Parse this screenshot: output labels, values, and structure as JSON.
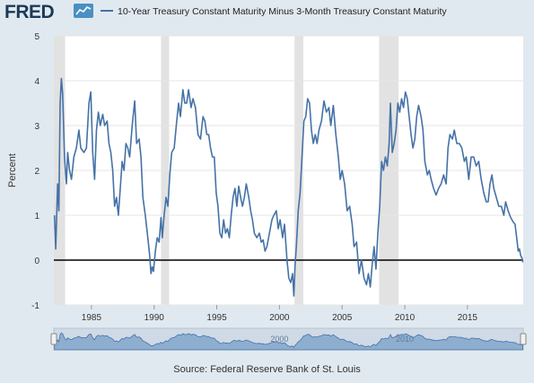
{
  "header": {
    "logo_text": "FRED",
    "logo_icon": "line-chart-icon",
    "legend_label": "10-Year Treasury Constant Maturity Minus 3-Month Treasury Constant Maturity",
    "series_color": "#4572a7"
  },
  "footer": {
    "source": "Source: Federal Reserve Bank of St. Louis"
  },
  "chart_data": {
    "type": "line",
    "title": "",
    "xlabel": "",
    "ylabel": "Percent",
    "xlim": [
      1982.0,
      2019.45
    ],
    "ylim": [
      -1,
      5
    ],
    "yticks": [
      -1,
      0,
      1,
      2,
      3,
      4,
      5
    ],
    "xticks": [
      1985,
      1990,
      1995,
      2000,
      2005,
      2010,
      2015
    ],
    "grid": true,
    "zero_line": true,
    "recessions": [
      [
        1982.0,
        1982.9
      ],
      [
        1990.55,
        1991.2
      ],
      [
        2001.2,
        2001.9
      ],
      [
        2007.95,
        2009.5
      ]
    ],
    "navigator_labels": [
      {
        "x": 2000,
        "label": "2000"
      },
      {
        "x": 2010,
        "label": "2010"
      }
    ],
    "series": [
      {
        "name": "10-Year Treasury Constant Maturity Minus 3-Month Treasury Constant Maturity",
        "color": "#4572a7",
        "points": [
          [
            1982.05,
            1.0
          ],
          [
            1982.15,
            0.25
          ],
          [
            1982.3,
            1.7
          ],
          [
            1982.4,
            1.1
          ],
          [
            1982.5,
            3.5
          ],
          [
            1982.6,
            4.05
          ],
          [
            1982.7,
            3.7
          ],
          [
            1982.85,
            2.3
          ],
          [
            1983.0,
            1.7
          ],
          [
            1983.1,
            2.4
          ],
          [
            1983.25,
            2.0
          ],
          [
            1983.4,
            1.8
          ],
          [
            1983.6,
            2.3
          ],
          [
            1983.8,
            2.5
          ],
          [
            1984.0,
            2.9
          ],
          [
            1984.15,
            2.5
          ],
          [
            1984.4,
            2.4
          ],
          [
            1984.6,
            2.5
          ],
          [
            1984.8,
            3.5
          ],
          [
            1984.95,
            3.75
          ],
          [
            1985.1,
            2.4
          ],
          [
            1985.25,
            1.8
          ],
          [
            1985.4,
            2.9
          ],
          [
            1985.55,
            3.3
          ],
          [
            1985.7,
            3.0
          ],
          [
            1985.9,
            3.25
          ],
          [
            1986.05,
            3.0
          ],
          [
            1986.25,
            3.1
          ],
          [
            1986.4,
            2.6
          ],
          [
            1986.55,
            2.4
          ],
          [
            1986.7,
            2.0
          ],
          [
            1986.85,
            1.2
          ],
          [
            1987.0,
            1.4
          ],
          [
            1987.15,
            1.0
          ],
          [
            1987.3,
            1.6
          ],
          [
            1987.45,
            2.2
          ],
          [
            1987.6,
            2.0
          ],
          [
            1987.75,
            2.6
          ],
          [
            1987.9,
            2.5
          ],
          [
            1988.05,
            2.3
          ],
          [
            1988.25,
            3.0
          ],
          [
            1988.45,
            3.55
          ],
          [
            1988.6,
            2.6
          ],
          [
            1988.8,
            2.7
          ],
          [
            1988.95,
            2.3
          ],
          [
            1989.1,
            1.4
          ],
          [
            1989.3,
            1.0
          ],
          [
            1989.5,
            0.5
          ],
          [
            1989.65,
            0.1
          ],
          [
            1989.75,
            -0.3
          ],
          [
            1989.85,
            -0.15
          ],
          [
            1989.95,
            -0.25
          ],
          [
            1990.1,
            0.2
          ],
          [
            1990.25,
            0.5
          ],
          [
            1990.4,
            0.4
          ],
          [
            1990.55,
            0.95
          ],
          [
            1990.65,
            0.5
          ],
          [
            1990.8,
            1.0
          ],
          [
            1990.95,
            1.4
          ],
          [
            1991.1,
            1.2
          ],
          [
            1991.25,
            1.9
          ],
          [
            1991.4,
            2.4
          ],
          [
            1991.6,
            2.5
          ],
          [
            1991.8,
            3.1
          ],
          [
            1991.95,
            3.5
          ],
          [
            1992.1,
            3.2
          ],
          [
            1992.3,
            3.8
          ],
          [
            1992.45,
            3.5
          ],
          [
            1992.6,
            3.5
          ],
          [
            1992.75,
            3.8
          ],
          [
            1992.95,
            3.4
          ],
          [
            1993.1,
            3.6
          ],
          [
            1993.3,
            3.4
          ],
          [
            1993.5,
            2.8
          ],
          [
            1993.7,
            2.7
          ],
          [
            1993.9,
            3.2
          ],
          [
            1994.05,
            3.1
          ],
          [
            1994.2,
            2.8
          ],
          [
            1994.35,
            2.8
          ],
          [
            1994.5,
            2.5
          ],
          [
            1994.65,
            2.3
          ],
          [
            1994.8,
            2.3
          ],
          [
            1994.95,
            1.5
          ],
          [
            1995.1,
            1.2
          ],
          [
            1995.25,
            0.6
          ],
          [
            1995.4,
            0.5
          ],
          [
            1995.55,
            0.9
          ],
          [
            1995.7,
            0.6
          ],
          [
            1995.85,
            0.7
          ],
          [
            1996.0,
            0.5
          ],
          [
            1996.15,
            1.0
          ],
          [
            1996.3,
            1.4
          ],
          [
            1996.45,
            1.6
          ],
          [
            1996.6,
            1.2
          ],
          [
            1996.75,
            1.65
          ],
          [
            1996.9,
            1.4
          ],
          [
            1997.05,
            1.2
          ],
          [
            1997.2,
            1.4
          ],
          [
            1997.35,
            1.7
          ],
          [
            1997.55,
            1.4
          ],
          [
            1997.7,
            1.1
          ],
          [
            1997.85,
            0.9
          ],
          [
            1998.0,
            0.6
          ],
          [
            1998.2,
            0.5
          ],
          [
            1998.4,
            0.6
          ],
          [
            1998.55,
            0.4
          ],
          [
            1998.7,
            0.45
          ],
          [
            1998.85,
            0.2
          ],
          [
            1999.0,
            0.3
          ],
          [
            1999.2,
            0.6
          ],
          [
            1999.4,
            0.9
          ],
          [
            1999.55,
            1.0
          ],
          [
            1999.75,
            1.1
          ],
          [
            1999.9,
            0.7
          ],
          [
            2000.05,
            0.9
          ],
          [
            2000.25,
            0.5
          ],
          [
            2000.4,
            0.8
          ],
          [
            2000.6,
            0.0
          ],
          [
            2000.75,
            -0.4
          ],
          [
            2000.9,
            -0.5
          ],
          [
            2001.05,
            -0.3
          ],
          [
            2001.15,
            -0.8
          ],
          [
            2001.25,
            -0.1
          ],
          [
            2001.35,
            0.3
          ],
          [
            2001.5,
            1.1
          ],
          [
            2001.65,
            1.5
          ],
          [
            2001.8,
            2.3
          ],
          [
            2001.95,
            3.1
          ],
          [
            2002.1,
            3.2
          ],
          [
            2002.25,
            3.6
          ],
          [
            2002.4,
            3.5
          ],
          [
            2002.55,
            2.9
          ],
          [
            2002.7,
            2.6
          ],
          [
            2002.85,
            2.8
          ],
          [
            2003.0,
            2.6
          ],
          [
            2003.15,
            2.9
          ],
          [
            2003.35,
            3.1
          ],
          [
            2003.55,
            3.55
          ],
          [
            2003.75,
            3.3
          ],
          [
            2003.95,
            3.4
          ],
          [
            2004.1,
            3.0
          ],
          [
            2004.3,
            3.45
          ],
          [
            2004.5,
            2.8
          ],
          [
            2004.7,
            2.3
          ],
          [
            2004.85,
            1.8
          ],
          [
            2005.0,
            2.0
          ],
          [
            2005.2,
            1.7
          ],
          [
            2005.4,
            1.1
          ],
          [
            2005.6,
            1.2
          ],
          [
            2005.8,
            0.8
          ],
          [
            2005.95,
            0.3
          ],
          [
            2006.15,
            0.4
          ],
          [
            2006.35,
            -0.3
          ],
          [
            2006.55,
            0.0
          ],
          [
            2006.75,
            -0.4
          ],
          [
            2006.95,
            -0.55
          ],
          [
            2007.1,
            -0.3
          ],
          [
            2007.25,
            -0.6
          ],
          [
            2007.4,
            -0.1
          ],
          [
            2007.55,
            0.3
          ],
          [
            2007.7,
            -0.2
          ],
          [
            2007.85,
            0.6
          ],
          [
            2008.0,
            1.2
          ],
          [
            2008.15,
            2.2
          ],
          [
            2008.3,
            2.0
          ],
          [
            2008.45,
            2.3
          ],
          [
            2008.6,
            2.1
          ],
          [
            2008.75,
            2.6
          ],
          [
            2008.85,
            3.5
          ],
          [
            2009.0,
            2.4
          ],
          [
            2009.15,
            2.6
          ],
          [
            2009.3,
            2.9
          ],
          [
            2009.45,
            3.5
          ],
          [
            2009.6,
            3.3
          ],
          [
            2009.75,
            3.6
          ],
          [
            2009.9,
            3.4
          ],
          [
            2010.05,
            3.75
          ],
          [
            2010.2,
            3.6
          ],
          [
            2010.35,
            3.2
          ],
          [
            2010.5,
            2.8
          ],
          [
            2010.65,
            2.5
          ],
          [
            2010.8,
            2.7
          ],
          [
            2010.95,
            3.2
          ],
          [
            2011.1,
            3.45
          ],
          [
            2011.3,
            3.2
          ],
          [
            2011.45,
            2.9
          ],
          [
            2011.6,
            2.2
          ],
          [
            2011.8,
            1.9
          ],
          [
            2011.95,
            2.0
          ],
          [
            2012.1,
            1.8
          ],
          [
            2012.3,
            1.6
          ],
          [
            2012.5,
            1.45
          ],
          [
            2012.7,
            1.6
          ],
          [
            2012.9,
            1.7
          ],
          [
            2013.1,
            1.9
          ],
          [
            2013.3,
            1.7
          ],
          [
            2013.45,
            2.5
          ],
          [
            2013.6,
            2.8
          ],
          [
            2013.8,
            2.7
          ],
          [
            2013.95,
            2.9
          ],
          [
            2014.15,
            2.6
          ],
          [
            2014.35,
            2.6
          ],
          [
            2014.55,
            2.5
          ],
          [
            2014.75,
            2.2
          ],
          [
            2014.9,
            2.3
          ],
          [
            2015.1,
            1.8
          ],
          [
            2015.3,
            2.3
          ],
          [
            2015.5,
            2.3
          ],
          [
            2015.7,
            2.1
          ],
          [
            2015.9,
            2.2
          ],
          [
            2016.1,
            1.8
          ],
          [
            2016.3,
            1.5
          ],
          [
            2016.5,
            1.3
          ],
          [
            2016.65,
            1.3
          ],
          [
            2016.8,
            1.7
          ],
          [
            2016.95,
            1.9
          ],
          [
            2017.1,
            1.6
          ],
          [
            2017.3,
            1.4
          ],
          [
            2017.5,
            1.2
          ],
          [
            2017.7,
            1.2
          ],
          [
            2017.9,
            1.0
          ],
          [
            2018.05,
            1.3
          ],
          [
            2018.25,
            1.1
          ],
          [
            2018.45,
            0.95
          ],
          [
            2018.65,
            0.85
          ],
          [
            2018.8,
            0.8
          ],
          [
            2018.95,
            0.45
          ],
          [
            2019.05,
            0.2
          ],
          [
            2019.15,
            0.25
          ],
          [
            2019.25,
            0.1
          ],
          [
            2019.35,
            0.05
          ],
          [
            2019.42,
            -0.05
          ]
        ]
      }
    ]
  }
}
